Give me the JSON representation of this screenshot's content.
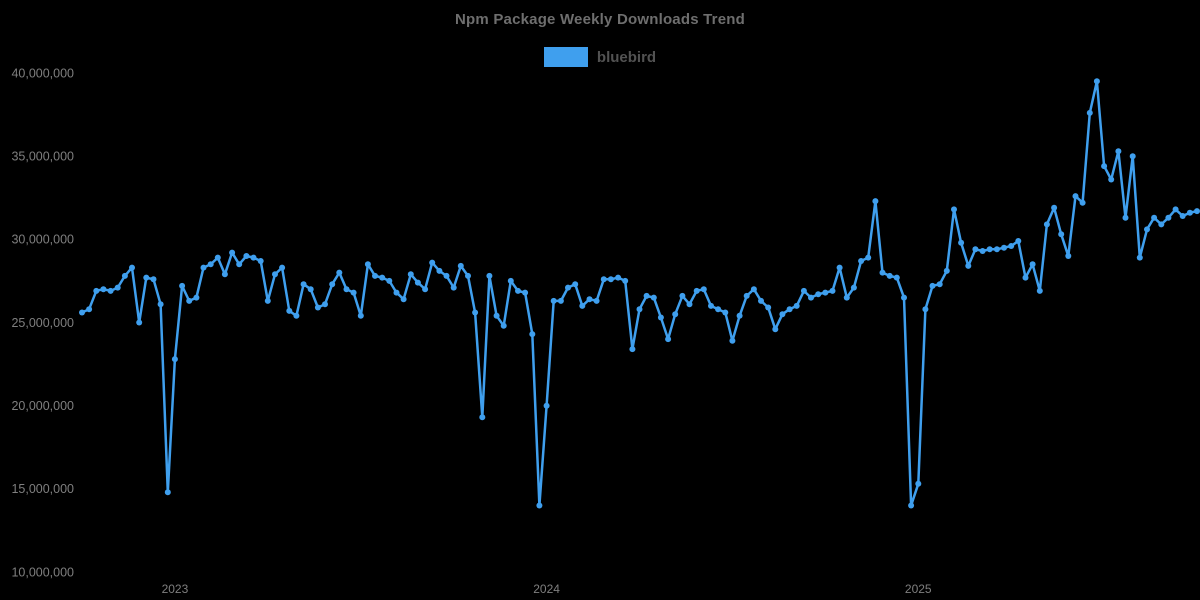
{
  "page": {
    "background": "#000000"
  },
  "header": {
    "title": "Npm Package Weekly Downloads Trend"
  },
  "legend": {
    "items": [
      {
        "label": "bluebird",
        "color": "#3f9fee"
      }
    ]
  },
  "chart_data": {
    "type": "line",
    "title": "Npm Package Weekly Downloads Trend",
    "x_unit": "week",
    "x_range_note": "weekly points from early Oct 2022 to late Sep 2025",
    "x_tick_labels": [
      "2023",
      "2024",
      "2025"
    ],
    "x_tick_indices": [
      13,
      65,
      117
    ],
    "y_tick_values_millions": [
      40,
      35,
      30,
      25,
      20,
      15,
      10
    ],
    "y_tick_labels": [
      "40,000,000",
      "35,000,000",
      "30,000,000",
      "25,000,000",
      "20,000,000",
      "15,000,000",
      "10,000,000"
    ],
    "ylim_millions": [
      10,
      40
    ],
    "grid": "off",
    "legend_position": "top-center",
    "marker": "circle",
    "series": [
      {
        "name": "bluebird",
        "color": "#3f9fee",
        "unit": "weekly downloads (millions)",
        "values_millions": [
          25.6,
          25.8,
          26.9,
          27.0,
          26.9,
          27.1,
          27.8,
          28.3,
          25.0,
          27.7,
          27.6,
          26.1,
          14.8,
          22.8,
          27.2,
          26.3,
          26.5,
          28.3,
          28.5,
          28.9,
          27.9,
          29.2,
          28.5,
          29.0,
          28.9,
          28.7,
          26.3,
          27.9,
          28.3,
          25.7,
          25.4,
          27.3,
          27.0,
          25.9,
          26.1,
          27.3,
          28.0,
          27.0,
          26.8,
          25.4,
          28.5,
          27.8,
          27.7,
          27.5,
          26.8,
          26.4,
          27.9,
          27.4,
          27.0,
          28.6,
          28.1,
          27.8,
          27.1,
          28.4,
          27.8,
          25.6,
          19.3,
          27.8,
          25.4,
          24.8,
          27.5,
          26.9,
          26.8,
          24.3,
          14.0,
          20.0,
          26.3,
          26.3,
          27.1,
          27.3,
          26.0,
          26.4,
          26.3,
          27.6,
          27.6,
          27.7,
          27.5,
          23.4,
          25.8,
          26.6,
          26.5,
          25.3,
          24.0,
          25.5,
          26.6,
          26.1,
          26.9,
          27.0,
          26.0,
          25.8,
          25.6,
          23.9,
          25.4,
          26.6,
          27.0,
          26.3,
          25.9,
          24.6,
          25.5,
          25.8,
          26.0,
          26.9,
          26.5,
          26.7,
          26.8,
          26.9,
          28.3,
          26.5,
          27.1,
          28.7,
          28.9,
          32.3,
          28.0,
          27.8,
          27.7,
          26.5,
          14.0,
          15.3,
          25.8,
          27.2,
          27.3,
          28.1,
          31.8,
          29.8,
          28.4,
          29.4,
          29.3,
          29.4,
          29.4,
          29.5,
          29.6,
          29.9,
          27.7,
          28.5,
          26.9,
          30.9,
          31.9,
          30.3,
          29.0,
          32.6,
          32.2,
          37.6,
          39.5,
          34.4,
          33.6,
          35.3,
          31.3,
          35.0,
          28.9,
          30.6,
          31.3,
          30.9,
          31.3,
          31.8,
          31.4,
          31.6,
          31.7
        ]
      }
    ]
  }
}
